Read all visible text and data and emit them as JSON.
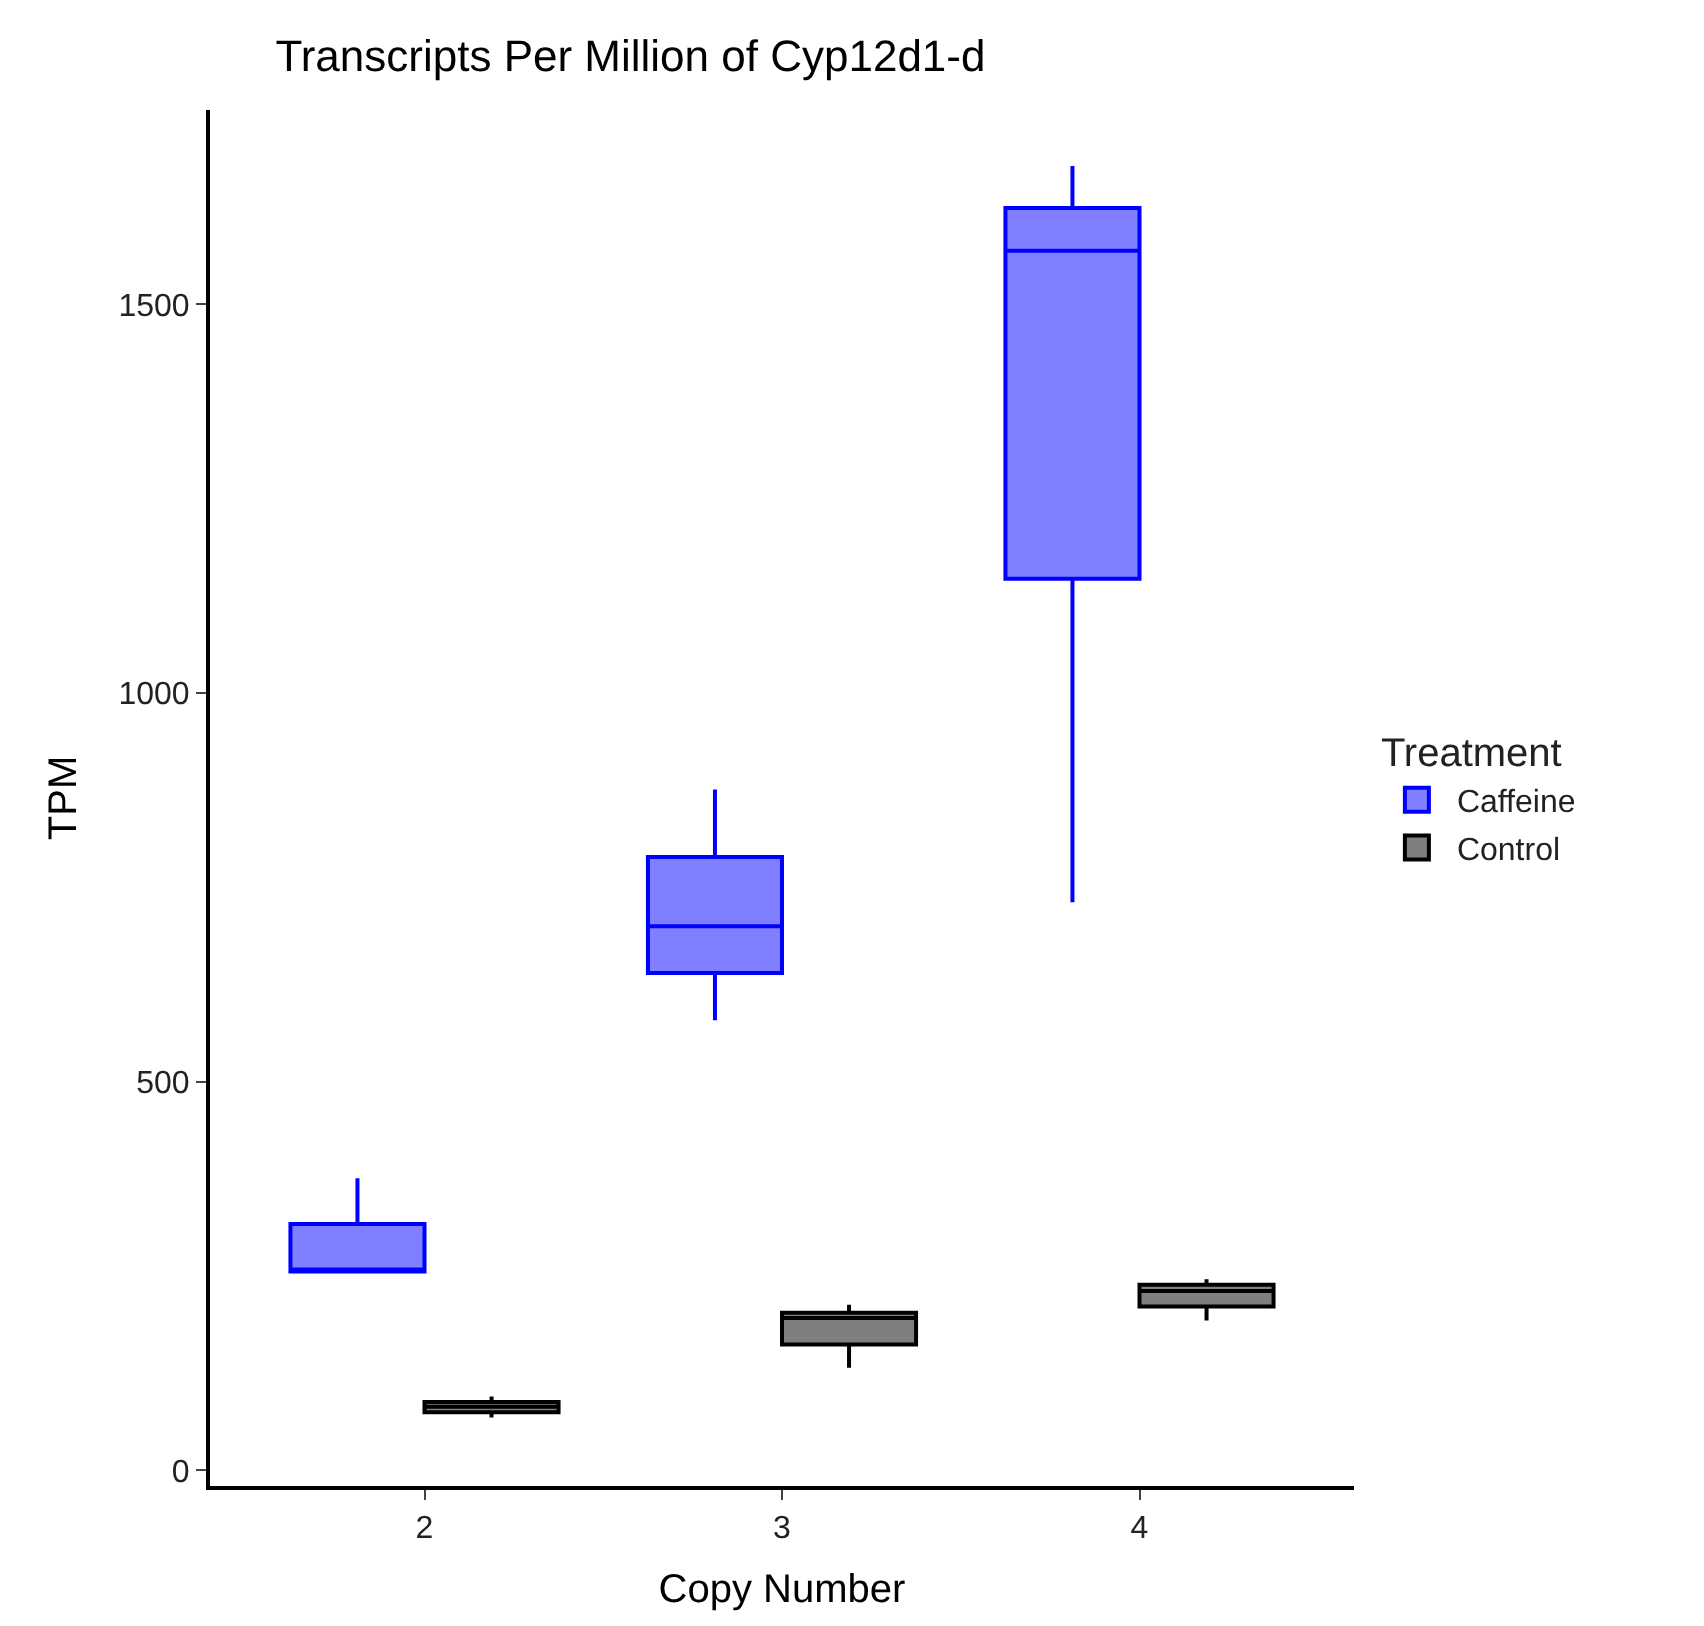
{
  "chart_data": {
    "type": "box",
    "title": "Transcripts Per Million of Cyp12d1-d",
    "xlabel": "Copy Number",
    "ylabel": "TPM",
    "legend_title": "Treatment",
    "categories": [
      "2",
      "3",
      "4"
    ],
    "series": [
      {
        "name": "Caffeine",
        "color": "#0000ff",
        "boxes": [
          {
            "low": 256,
            "q1": 256,
            "median": 258,
            "q3": 317,
            "high": 376
          },
          {
            "low": 579,
            "q1": 640,
            "median": 700,
            "q3": 789,
            "high": 876
          },
          {
            "low": 731,
            "q1": 1147,
            "median": 1569,
            "q3": 1624,
            "high": 1678
          }
        ]
      },
      {
        "name": "Control",
        "color": "#000000",
        "boxes": [
          {
            "low": 68,
            "q1": 75,
            "median": 82,
            "q3": 88,
            "high": 95
          },
          {
            "low": 132,
            "q1": 162,
            "median": 196,
            "q3": 203,
            "high": 213
          },
          {
            "low": 193,
            "q1": 211,
            "median": 231,
            "q3": 239,
            "high": 246
          }
        ]
      }
    ],
    "ylim": [
      -20,
      1750
    ],
    "yticks": [
      0,
      500,
      1000,
      1500
    ],
    "legend": "right"
  }
}
